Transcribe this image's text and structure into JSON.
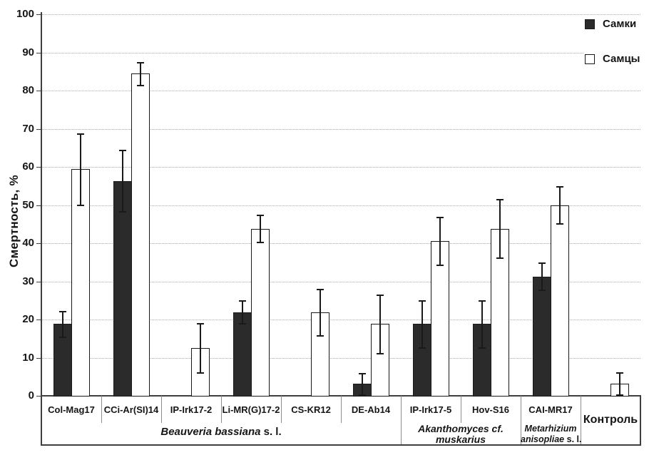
{
  "chart_data": {
    "type": "bar",
    "title": "",
    "ylabel": "Смертность, %",
    "xlabel": "",
    "ylim": [
      0,
      100
    ],
    "ytick_step": 10,
    "grid": "horizontal-dotted",
    "legend_position": "top-right-inside",
    "categories": [
      "Col-Mag17",
      "CCi-Ar(SI)14",
      "IP-Irk17-2",
      "Li-MR(G)17-2",
      "CS-KR12",
      "DE-Ab14",
      "IP-Irk17-5",
      "Hov-S16",
      "CAI-MR17",
      "Контроль"
    ],
    "series": [
      {
        "key": "females",
        "name": "Самки",
        "fill": "#2b2b2b",
        "values": [
          18.8,
          56.3,
          0,
          21.9,
          0,
          3.1,
          18.8,
          18.8,
          31.3,
          0
        ],
        "errors": [
          3.5,
          8.1,
          0,
          3.1,
          0,
          2.9,
          6.3,
          6.3,
          3.7,
          0
        ]
      },
      {
        "key": "males",
        "name": "Самцы",
        "fill": "#ffffff",
        "values": [
          59.4,
          84.4,
          12.5,
          43.8,
          21.9,
          18.8,
          40.6,
          43.8,
          50.0,
          3.1
        ],
        "errors": [
          9.4,
          3.1,
          6.5,
          3.6,
          6.2,
          7.8,
          6.4,
          7.8,
          5.0,
          3.0
        ]
      }
    ],
    "groups": [
      {
        "key": "beauveria-bassiana",
        "from": 0,
        "to": 5,
        "lines": [
          [
            {
              "text": "Beauveria bassiana",
              "italic": true
            },
            {
              "text": " s. l.",
              "italic": false
            }
          ]
        ],
        "font_size": 15
      },
      {
        "key": "akanthomyces-muskarius",
        "from": 6,
        "to": 7,
        "lines": [
          [
            {
              "text": "Akanthomyces cf.",
              "italic": true
            }
          ],
          [
            {
              "text": "muskarius",
              "italic": true
            }
          ]
        ],
        "font_size": 14
      },
      {
        "key": "metarhizium-anisopliae",
        "from": 8,
        "to": 8,
        "lines": [
          [
            {
              "text": "Metarhizium",
              "italic": true
            }
          ],
          [
            {
              "text": "anisopliae",
              "italic": true
            },
            {
              "text": " s. l.",
              "italic": false
            }
          ]
        ],
        "font_size": 12.5
      }
    ],
    "tall_label_index": 9,
    "colors": {
      "bar_females": "#2b2b2b",
      "bar_males": "#ffffff",
      "bar_border": "#1a1a1a",
      "gridline": "#a8a8a8",
      "axis": "#3f3f3f",
      "separator": "#8c8c8c",
      "text": "#151515"
    }
  }
}
